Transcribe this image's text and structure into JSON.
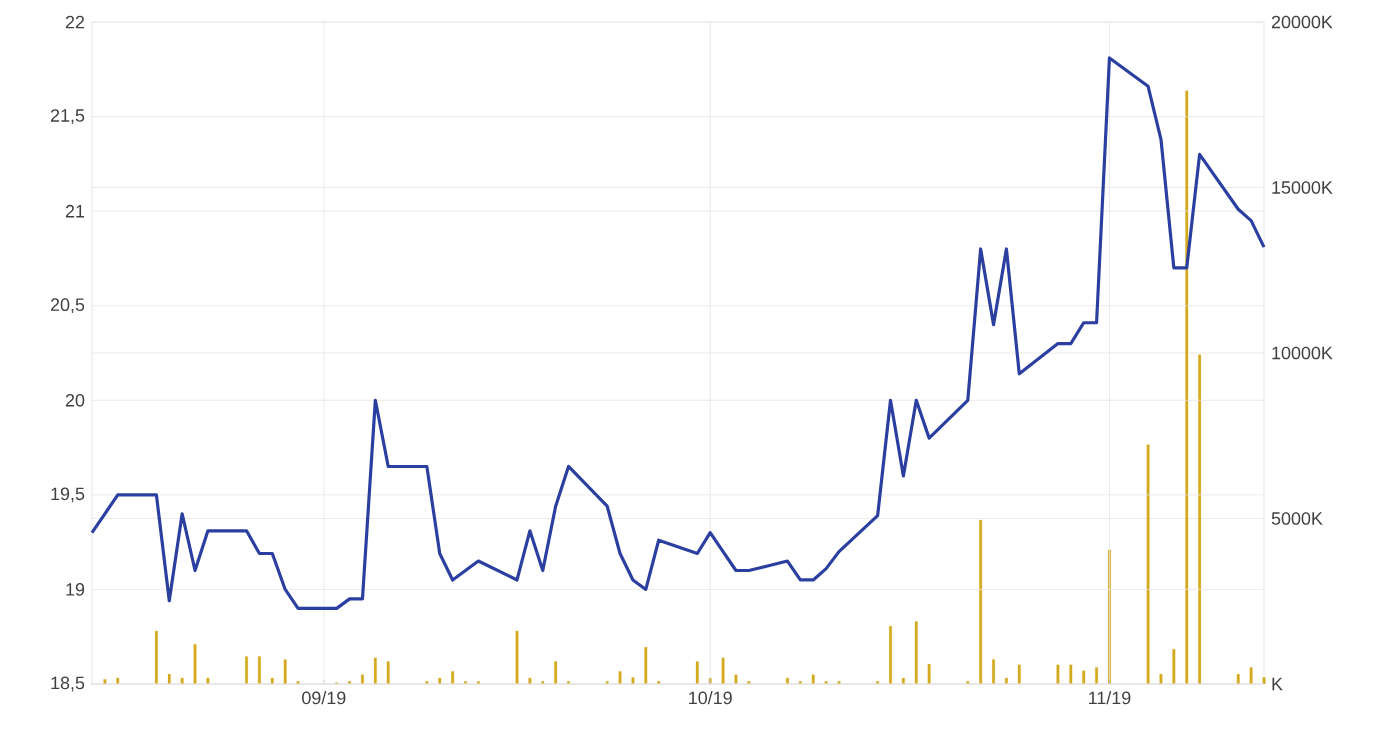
{
  "chart_data": {
    "type": "line",
    "x": [
      "2019-08-14",
      "2019-08-15",
      "2019-08-16",
      "2019-08-19",
      "2019-08-20",
      "2019-08-21",
      "2019-08-22",
      "2019-08-23",
      "2019-08-26",
      "2019-08-27",
      "2019-08-28",
      "2019-08-29",
      "2019-08-30",
      "2019-09-02",
      "2019-09-03",
      "2019-09-04",
      "2019-09-05",
      "2019-09-06",
      "2019-09-09",
      "2019-09-10",
      "2019-09-11",
      "2019-09-12",
      "2019-09-13",
      "2019-09-16",
      "2019-09-17",
      "2019-09-18",
      "2019-09-19",
      "2019-09-20",
      "2019-09-23",
      "2019-09-24",
      "2019-09-25",
      "2019-09-26",
      "2019-09-27",
      "2019-09-30",
      "2019-10-01",
      "2019-10-02",
      "2019-10-03",
      "2019-10-04",
      "2019-10-07",
      "2019-10-08",
      "2019-10-09",
      "2019-10-10",
      "2019-10-11",
      "2019-10-14",
      "2019-10-15",
      "2019-10-16",
      "2019-10-17",
      "2019-10-18",
      "2019-10-21",
      "2019-10-22",
      "2019-10-23",
      "2019-10-24",
      "2019-10-25",
      "2019-10-28",
      "2019-10-29",
      "2019-10-30",
      "2019-10-31",
      "2019-11-01",
      "2019-11-04",
      "2019-11-05",
      "2019-11-06",
      "2019-11-07",
      "2019-11-08",
      "2019-11-11",
      "2019-11-12",
      "2019-11-13"
    ],
    "series": [
      {
        "color": "#2b3fa0",
        "values": [
          19.3,
          19.4,
          19.5,
          19.5,
          18.94,
          19.4,
          19.1,
          19.31,
          19.31,
          19.19,
          19.19,
          19.0,
          18.9,
          18.9,
          18.95,
          18.95,
          20.0,
          19.65,
          19.65,
          19.19,
          19.05,
          19.1,
          19.15,
          19.05,
          19.31,
          19.1,
          19.44,
          19.65,
          19.44,
          19.19,
          19.05,
          19.0,
          19.26,
          19.19,
          19.3,
          19.2,
          19.1,
          19.1,
          19.15,
          19.05,
          19.05,
          19.11,
          19.2,
          19.39,
          20.0,
          19.6,
          20.0,
          19.8,
          20.0,
          20.8,
          20.4,
          20.8,
          20.14,
          20.3,
          20.3,
          20.41,
          20.41,
          21.81,
          21.66,
          21.38,
          20.7,
          20.7,
          21.3,
          21.01,
          20.95,
          20.81
        ]
      },
      {
        "type": "bar",
        "axis": "y2",
        "color": "#d4aa1e",
        "values": [
          0,
          140,
          180,
          1600,
          300,
          180,
          1200,
          180,
          830,
          830,
          180,
          740,
          80,
          40,
          80,
          280,
          790,
          680,
          80,
          180,
          380,
          80,
          80,
          1600,
          180,
          80,
          680,
          80,
          80,
          380,
          200,
          1110,
          80,
          680,
          180,
          790,
          280,
          80,
          180,
          80,
          280,
          80,
          80,
          80,
          1750,
          180,
          1890,
          600,
          80,
          4950,
          740,
          180,
          580,
          580,
          580,
          400,
          500,
          4050,
          7230,
          300,
          1050,
          17920,
          9950,
          300,
          500,
          200
        ]
      }
    ],
    "xlim": [
      "2019-08-14",
      "2019-11-13"
    ],
    "xticks": [
      {
        "value": "2019-09-01",
        "label": "09/19"
      },
      {
        "value": "2019-10-01",
        "label": "10/19"
      },
      {
        "value": "2019-11-01",
        "label": "11/19"
      }
    ],
    "ylim": [
      18.5,
      22
    ],
    "yticks": [
      {
        "value": 18.5,
        "label": "18,5"
      },
      19,
      {
        "value": 19.5,
        "label": "19,5"
      },
      20,
      {
        "value": 20.5,
        "label": "20,5"
      },
      21,
      {
        "value": 21.5,
        "label": "21,5"
      },
      22
    ],
    "y2lim": [
      0,
      20000
    ],
    "y2ticks": [
      {
        "value": 0,
        "label": "K"
      },
      {
        "value": 5000,
        "label": "5000K"
      },
      {
        "value": 10000,
        "label": "10000K"
      },
      {
        "value": 15000,
        "label": "15000K"
      },
      {
        "value": 20000,
        "label": "20000K"
      }
    ],
    "grid": true
  }
}
